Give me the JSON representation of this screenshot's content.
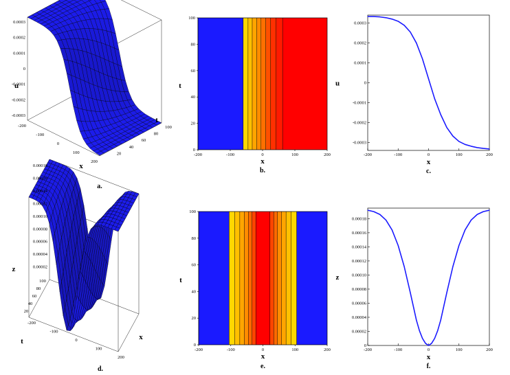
{
  "chart_data": [
    {
      "panel": "a.",
      "type": "surface3d",
      "xlabel": "x",
      "ylabel": "t",
      "zlabel": "u",
      "x_ticks": [
        "-200",
        "-100",
        "0",
        "100",
        "200"
      ],
      "t_ticks": [
        "20",
        "40",
        "60",
        "80",
        "100"
      ],
      "z_ticks": [
        "0.0003",
        "0.0002",
        "0.0001",
        "0",
        "-0.0001",
        "-0.0002",
        "-0.0003"
      ],
      "xlim": [
        -200,
        200
      ],
      "tlim": [
        0,
        100
      ],
      "zlim": [
        -0.00033,
        0.00033
      ],
      "surface_color": "#1a1adb"
    },
    {
      "panel": "b.",
      "type": "heatmap",
      "xlabel": "x",
      "ylabel": "t",
      "x_ticks": [
        "-200",
        "-100",
        "0",
        "100",
        "200"
      ],
      "y_ticks": [
        "0",
        "20",
        "40",
        "60",
        "80",
        "100"
      ],
      "xlim": [
        -200,
        200
      ],
      "ylim": [
        0,
        100
      ],
      "bands": [
        {
          "x0": -200,
          "x1": -60,
          "color": "#1a1aff"
        },
        {
          "x0": -60,
          "x1": -45,
          "color": "#ffd700"
        },
        {
          "x0": -45,
          "x1": -32,
          "color": "#ffc000"
        },
        {
          "x0": -32,
          "x1": -18,
          "color": "#ffa500"
        },
        {
          "x0": -18,
          "x1": -5,
          "color": "#ff8c00"
        },
        {
          "x0": -5,
          "x1": 10,
          "color": "#ff7000"
        },
        {
          "x0": 10,
          "x1": 25,
          "color": "#ff5000"
        },
        {
          "x0": 25,
          "x1": 42,
          "color": "#ff3000"
        },
        {
          "x0": 42,
          "x1": 62,
          "color": "#ff1a00"
        },
        {
          "x0": 62,
          "x1": 200,
          "color": "#ff0000"
        }
      ]
    },
    {
      "panel": "c.",
      "type": "line",
      "xlabel": "x",
      "ylabel": "u",
      "x_ticks": [
        "-200",
        "-100",
        "0",
        "100",
        "200"
      ],
      "y_ticks": [
        "0.0003",
        "0.0002",
        "0.0001",
        "0",
        "-0.0001",
        "-0.0002",
        "-0.0003"
      ],
      "xlim": [
        -200,
        200
      ],
      "ylim": [
        -0.00034,
        0.00034
      ],
      "series": [
        {
          "color": "#1a1aff",
          "x": [
            -200,
            -180,
            -160,
            -140,
            -120,
            -100,
            -80,
            -60,
            -40,
            -20,
            0,
            20,
            40,
            60,
            80,
            100,
            120,
            140,
            160,
            180,
            200
          ],
          "y": [
            0.000333,
            0.000333,
            0.000331,
            0.000327,
            0.00032,
            0.000309,
            0.000289,
            0.000255,
            0.0002,
            0.00012,
            2e-05,
            -8e-05,
            -0.00016,
            -0.000225,
            -0.000268,
            -0.000295,
            -0.00031,
            -0.000319,
            -0.000326,
            -0.00033,
            -0.000333
          ]
        }
      ]
    },
    {
      "panel": "d.",
      "type": "surface3d",
      "xlabel": "x",
      "ylabel": "t",
      "zlabel": "z",
      "x_ticks": [
        "-200",
        "-100",
        "0",
        "100",
        "200"
      ],
      "t_ticks": [
        "100",
        "80",
        "60",
        "40",
        "20"
      ],
      "z_ticks": [
        "0.00018",
        "0.00016",
        "0.00014",
        "0.00012",
        "0.00010",
        "0.00008",
        "0.00006",
        "0.00004",
        "0.00002"
      ],
      "xlim": [
        -200,
        200
      ],
      "tlim": [
        0,
        100
      ],
      "zlim": [
        0,
        0.00019
      ],
      "surface_color": "#1a1adb"
    },
    {
      "panel": "e.",
      "type": "heatmap",
      "xlabel": "x",
      "ylabel": "t",
      "x_ticks": [
        "-200",
        "-100",
        "0",
        "100",
        "200"
      ],
      "y_ticks": [
        "0",
        "20",
        "40",
        "60",
        "80",
        "100"
      ],
      "xlim": [
        -200,
        200
      ],
      "ylim": [
        0,
        100
      ],
      "bands": [
        {
          "x0": -200,
          "x1": -105,
          "color": "#1a1aff"
        },
        {
          "x0": -105,
          "x1": -88,
          "color": "#ffd700"
        },
        {
          "x0": -88,
          "x1": -72,
          "color": "#ffc000"
        },
        {
          "x0": -72,
          "x1": -58,
          "color": "#ffa500"
        },
        {
          "x0": -58,
          "x1": -45,
          "color": "#ff8c00"
        },
        {
          "x0": -45,
          "x1": -34,
          "color": "#ff6a00"
        },
        {
          "x0": -34,
          "x1": -22,
          "color": "#ff4500"
        },
        {
          "x0": -22,
          "x1": 22,
          "color": "#ff0000"
        },
        {
          "x0": 22,
          "x1": 34,
          "color": "#ff4500"
        },
        {
          "x0": 34,
          "x1": 45,
          "color": "#ff6a00"
        },
        {
          "x0": 45,
          "x1": 58,
          "color": "#ff8c00"
        },
        {
          "x0": 58,
          "x1": 72,
          "color": "#ffa500"
        },
        {
          "x0": 72,
          "x1": 88,
          "color": "#ffc000"
        },
        {
          "x0": 88,
          "x1": 105,
          "color": "#ffd700"
        },
        {
          "x0": 105,
          "x1": 200,
          "color": "#1a1aff"
        }
      ]
    },
    {
      "panel": "f.",
      "type": "line",
      "xlabel": "x",
      "ylabel": "z",
      "x_ticks": [
        "-200",
        "-100",
        "0",
        "100",
        "200"
      ],
      "y_ticks": [
        "0.00018",
        "0.00016",
        "0.00014",
        "0.00012",
        "0.00010",
        "0.00008",
        "0.00006",
        "0.00004",
        "0.00002",
        "0"
      ],
      "xlim": [
        -200,
        200
      ],
      "ylim": [
        0,
        0.000195
      ],
      "series": [
        {
          "color": "#1a1aff",
          "x": [
            -200,
            -180,
            -160,
            -140,
            -120,
            -100,
            -80,
            -60,
            -40,
            -30,
            -20,
            -10,
            0,
            10,
            20,
            30,
            40,
            60,
            80,
            100,
            120,
            140,
            160,
            180,
            200
          ],
          "y": [
            0.000192,
            0.00019,
            0.000186,
            0.000178,
            0.000164,
            0.000142,
            0.000112,
            7.5e-05,
            3.6e-05,
            2.1e-05,
            1e-05,
            3e-06,
            0.0,
            3e-06,
            1e-05,
            2.1e-05,
            3.6e-05,
            7.5e-05,
            0.000112,
            0.000142,
            0.000164,
            0.000178,
            0.000186,
            0.00019,
            0.000192
          ]
        }
      ]
    }
  ]
}
